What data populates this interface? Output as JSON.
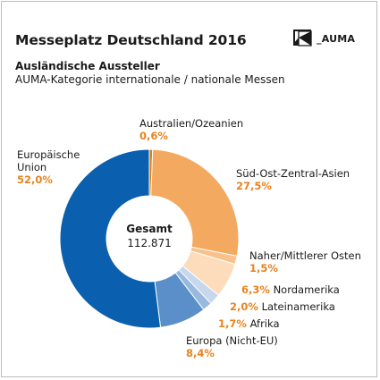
{
  "title": "Messeplatz Deutschland 2016",
  "subtitle": "Ausländische Aussteller",
  "caption": "AUMA-Kategorie internationale / nationale Messen",
  "logo_text": "_AUMA",
  "center": {
    "label": "Gesamt",
    "value": "112.871"
  },
  "chart_data": {
    "type": "donut",
    "unit": "%",
    "total": 112871,
    "slices": [
      {
        "name": "Australien/Ozeanien",
        "value": 0.6,
        "label": "0,6%",
        "color": "#e07a10"
      },
      {
        "name": "Süd-Ost-Zentral-Asien",
        "value": 27.5,
        "label": "27,5%",
        "color": "#f3a95f"
      },
      {
        "name": "Naher/Mittlerer Osten",
        "value": 1.5,
        "label": "1,5%",
        "color": "#f8c28a"
      },
      {
        "name": "Nordamerika",
        "value": 6.3,
        "label": "6,3%",
        "color": "#fcdcbb"
      },
      {
        "name": "Lateinamerika",
        "value": 2.0,
        "label": "2,0%",
        "color": "#c7d8ec"
      },
      {
        "name": "Afrika",
        "value": 1.7,
        "label": "1,7%",
        "color": "#98b9de"
      },
      {
        "name": "Europa (Nicht-EU)",
        "value": 8.4,
        "label": "8,4%",
        "color": "#5b8fca"
      },
      {
        "name": "Europäische Union",
        "value": 52.0,
        "label": "52,0%",
        "color": "#0a5fae"
      }
    ]
  },
  "labels": {
    "australien": {
      "name": "Australien/Ozeanien",
      "pct": "0,6%"
    },
    "eu": {
      "name_line1": "Europäische",
      "name_line2": "Union",
      "pct": "52,0%"
    },
    "asien": {
      "name": "Süd-Ost-Zentral-Asien",
      "pct": "27,5%"
    },
    "nahost": {
      "name": "Naher/Mittlerer Osten",
      "pct": "1,5%"
    },
    "nordamerika": {
      "name": "Nordamerika",
      "pct": "6,3%"
    },
    "lateinamerika": {
      "name": "Lateinamerika",
      "pct": "2,0%"
    },
    "afrika": {
      "name": "Afrika",
      "pct": "1,7%"
    },
    "europa": {
      "name": "Europa (Nicht-EU)",
      "pct": "8,4%"
    }
  }
}
